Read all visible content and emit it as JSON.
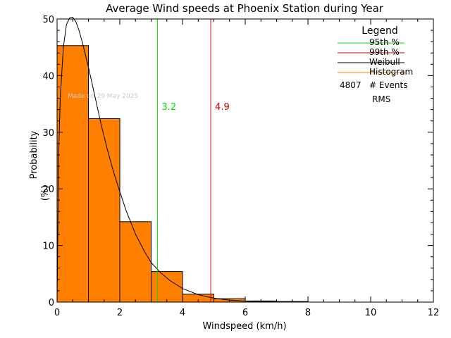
{
  "chart_data": {
    "type": "bar",
    "title": "Average Wind speeds at Phoenix Station during Year",
    "xlabel": "Windspeed (km/h)",
    "ylabel": "Probability",
    "ylabel_unit": "(%)",
    "xlim": [
      0,
      12
    ],
    "ylim": [
      0,
      50
    ],
    "xticks": [
      0,
      2,
      4,
      6,
      8,
      10,
      12
    ],
    "yticks": [
      0,
      10,
      20,
      30,
      40,
      50
    ],
    "grid": false,
    "bin_width": 1,
    "bins": [
      {
        "x0": 0,
        "x1": 1,
        "value": 45.3
      },
      {
        "x0": 1,
        "x1": 2,
        "value": 32.4
      },
      {
        "x0": 2,
        "x1": 3,
        "value": 14.2
      },
      {
        "x0": 3,
        "x1": 4,
        "value": 5.4
      },
      {
        "x0": 4,
        "x1": 5,
        "value": 1.4
      },
      {
        "x0": 5,
        "x1": 6,
        "value": 0.6
      },
      {
        "x0": 6,
        "x1": 7,
        "value": 0.2
      },
      {
        "x0": 7,
        "x1": 8,
        "value": 0.1
      }
    ],
    "weibull": {
      "x": [
        0,
        0.05,
        0.1,
        0.2,
        0.3,
        0.4,
        0.5,
        0.6,
        0.7,
        0.8,
        1.0,
        1.2,
        1.4,
        1.6,
        1.8,
        2.0,
        2.2,
        2.5,
        2.8,
        3.0,
        3.3,
        3.6,
        4.0,
        4.5,
        5.0,
        5.5,
        6.0,
        6.5,
        7.0,
        7.5,
        8.0
      ],
      "y": [
        0,
        26,
        36,
        45,
        49,
        50.2,
        50.3,
        49.5,
        48,
        46,
        41.5,
        36.5,
        31.5,
        27,
        23,
        19.5,
        16.2,
        12,
        8.8,
        7,
        5.2,
        3.8,
        2.4,
        1.3,
        0.7,
        0.35,
        0.18,
        0.09,
        0.04,
        0.02,
        0.01
      ]
    },
    "percentiles": [
      {
        "name": "95th %",
        "value": 3.2,
        "label": "3.2",
        "color": "#00dd00"
      },
      {
        "name": "99th %",
        "value": 4.9,
        "label": "4.9",
        "color": "#cc0000"
      }
    ],
    "legend": {
      "title": "Legend",
      "placement": "top-right",
      "entries": [
        {
          "name": "95th %",
          "color": "#00dd00"
        },
        {
          "name": "99th %",
          "color": "#cc0000"
        },
        {
          "name": "Weibull",
          "color": "#000000"
        },
        {
          "name": "Histogram",
          "color": "#ff8000"
        }
      ],
      "events_count": "4807",
      "events_label": "# Events",
      "rms_label": "RMS"
    },
    "watermark": "Made on 29 May 2025",
    "colors": {
      "histogram": "#ff8000",
      "weibull": "#000000",
      "axes": "#000000"
    }
  }
}
